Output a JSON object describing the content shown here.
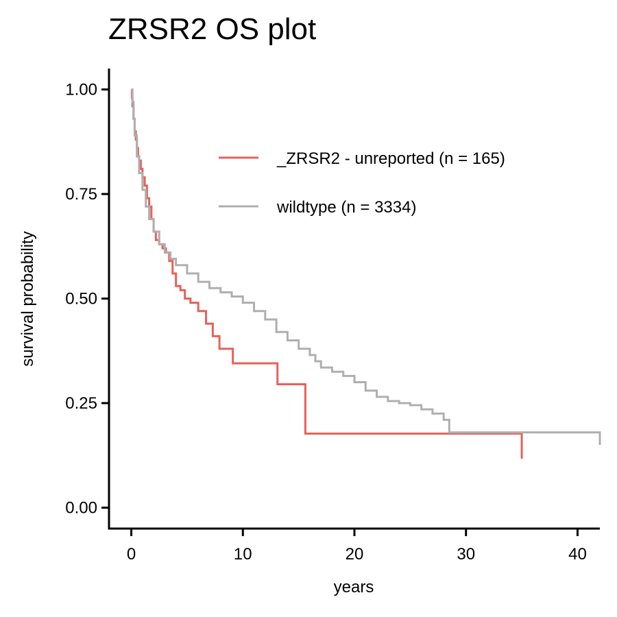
{
  "chart_data": {
    "type": "line",
    "title": "ZRSR2 OS plot",
    "xlabel": "years",
    "ylabel": "survival probability",
    "xlim": [
      -2,
      42
    ],
    "ylim": [
      -0.05,
      1.05
    ],
    "xticks": [
      {
        "value": 0,
        "label": "0"
      },
      {
        "value": 10,
        "label": "10"
      },
      {
        "value": 20,
        "label": "20"
      },
      {
        "value": 30,
        "label": "30"
      },
      {
        "value": 40,
        "label": "40"
      }
    ],
    "yticks": [
      {
        "value": 0,
        "label": "0.00"
      },
      {
        "value": 0.25,
        "label": "0.25"
      },
      {
        "value": 0.5,
        "label": "0.50"
      },
      {
        "value": 0.75,
        "label": "0.75"
      },
      {
        "value": 1.0,
        "label": "1.00"
      }
    ],
    "grid": false,
    "legend_position": "top-right",
    "series": [
      {
        "name": "_ZRSR2 - unreported (n = 165)",
        "color": "#E8605A",
        "step": true,
        "x": [
          0,
          0.05,
          0.1,
          0.2,
          0.3,
          0.4,
          0.5,
          0.6,
          0.7,
          0.85,
          1.0,
          1.2,
          1.4,
          1.6,
          1.8,
          2.0,
          2.2,
          2.5,
          2.8,
          3.1,
          3.4,
          3.7,
          4.0,
          4.4,
          4.8,
          5.3,
          6.0,
          6.7,
          7.3,
          7.9,
          9.1,
          13.1,
          15.6,
          35.0
        ],
        "y": [
          1.0,
          0.98,
          0.96,
          0.93,
          0.9,
          0.88,
          0.86,
          0.84,
          0.83,
          0.81,
          0.79,
          0.77,
          0.74,
          0.72,
          0.69,
          0.66,
          0.64,
          0.63,
          0.62,
          0.61,
          0.59,
          0.56,
          0.53,
          0.52,
          0.5,
          0.49,
          0.47,
          0.44,
          0.41,
          0.38,
          0.345,
          0.295,
          0.177,
          0.117
        ]
      },
      {
        "name": "wildtype (n = 3334)",
        "color": "#AFAFAF",
        "step": true,
        "x": [
          0,
          0.1,
          0.2,
          0.3,
          0.5,
          0.7,
          1.0,
          1.3,
          1.6,
          2.0,
          2.5,
          3.0,
          3.5,
          4.0,
          5.0,
          6.0,
          7.0,
          8.0,
          9.0,
          10.0,
          11.0,
          12.0,
          13.0,
          14.0,
          15.0,
          16.0,
          16.5,
          17.0,
          18.0,
          19.0,
          20.0,
          21.0,
          22.0,
          23.0,
          24.0,
          25.0,
          26.0,
          27.0,
          28.0,
          28.5,
          42.0
        ],
        "y": [
          1.0,
          0.97,
          0.93,
          0.89,
          0.84,
          0.8,
          0.76,
          0.72,
          0.69,
          0.66,
          0.63,
          0.61,
          0.595,
          0.58,
          0.56,
          0.54,
          0.525,
          0.515,
          0.505,
          0.49,
          0.47,
          0.45,
          0.42,
          0.4,
          0.38,
          0.365,
          0.35,
          0.335,
          0.325,
          0.315,
          0.3,
          0.28,
          0.265,
          0.255,
          0.25,
          0.245,
          0.235,
          0.225,
          0.21,
          0.18,
          0.15
        ]
      }
    ]
  }
}
